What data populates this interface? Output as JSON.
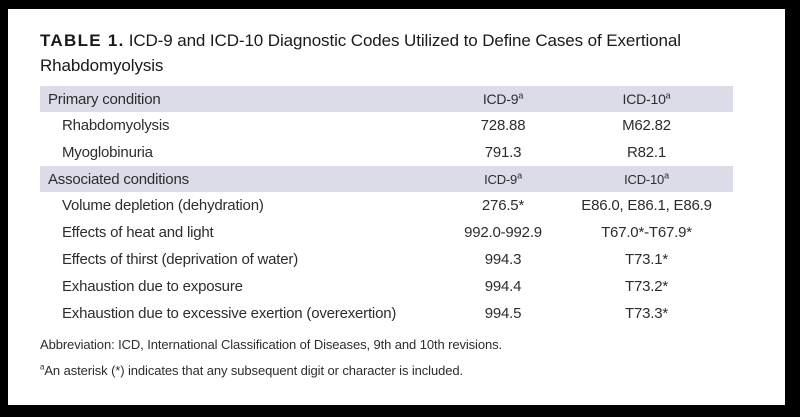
{
  "colors": {
    "frame": "#000000",
    "page_bg": "#ffffff",
    "header_bg": "#dbdce8",
    "body_text": "#2d2d2d",
    "title_text": "#1a1a1a"
  },
  "title": {
    "label": "TABLE 1.",
    "text": "ICD-9 and ICD-10 Diagnostic Codes Utilized to Define Cases of Exertional Rhabdomyolysis"
  },
  "table": {
    "sections": [
      {
        "header": {
          "label": "Primary condition",
          "col1": "ICD-9",
          "col1_sup": "a",
          "col2": "ICD-10",
          "col2_sup": "a"
        },
        "rows": [
          {
            "condition": "Rhabdomyolysis",
            "icd9": "728.88",
            "icd10": "M62.82"
          },
          {
            "condition": "Myoglobinuria",
            "icd9": "791.3",
            "icd10": "R82.1"
          }
        ]
      },
      {
        "header": {
          "label": "Associated conditions",
          "col1": "ICD-9",
          "col1_sup": "a",
          "col2": "ICD-10",
          "col2_sup": "a"
        },
        "rows": [
          {
            "condition": "Volume depletion (dehydration)",
            "icd9": "276.5*",
            "icd10": "E86.0, E86.1, E86.9"
          },
          {
            "condition": "Effects of heat and light",
            "icd9": "992.0-992.9",
            "icd10": "T67.0*-T67.9*"
          },
          {
            "condition": "Effects of thirst (deprivation of water)",
            "icd9": "994.3",
            "icd10": "T73.1*"
          },
          {
            "condition": "Exhaustion due to exposure",
            "icd9": "994.4",
            "icd10": "T73.2*"
          },
          {
            "condition": "Exhaustion due to excessive exertion (overexertion)",
            "icd9": "994.5",
            "icd10": "T73.3*"
          }
        ]
      }
    ]
  },
  "footnotes": {
    "abbreviation": "Abbreviation: ICD, International Classification of Diseases, 9th and 10th revisions.",
    "asterisk_marker": "a",
    "asterisk_text": "An asterisk (*) indicates that any subsequent digit or character is included."
  }
}
